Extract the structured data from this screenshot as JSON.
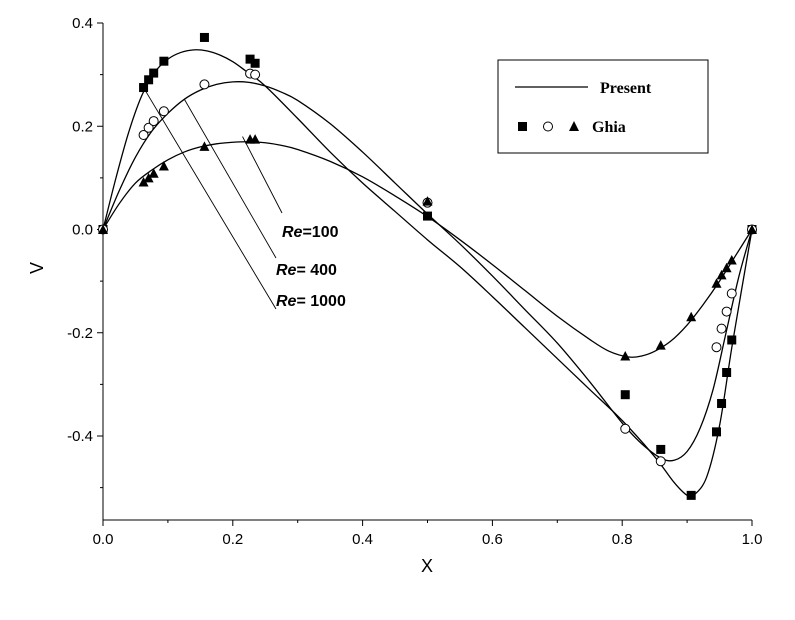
{
  "chart_data": {
    "type": "line",
    "title": "",
    "xlabel": "X",
    "ylabel": "V",
    "xlim": [
      0.0,
      1.0
    ],
    "ylim": [
      -0.55,
      0.4
    ],
    "x_ticks": [
      0.0,
      0.2,
      0.4,
      0.6,
      0.8,
      1.0
    ],
    "x_tick_labels": [
      "0.0",
      "0.2",
      "0.4",
      "0.6",
      "0.8",
      "1.0"
    ],
    "y_ticks": [
      -0.4,
      -0.2,
      0.0,
      0.2,
      0.4
    ],
    "y_tick_labels": [
      "-0.4",
      "-0.2",
      "0.0",
      "0.2",
      "0.4"
    ],
    "grid": false,
    "legend": {
      "position": "top-right",
      "present_label": "Present",
      "ghia_label": "Ghia"
    },
    "annotations": [
      {
        "prefix": "Re",
        "value": "=100"
      },
      {
        "prefix": "Re",
        "value": "= 400"
      },
      {
        "prefix": "Re",
        "value": "= 1000"
      }
    ],
    "series": [
      {
        "name": "Re=100 Present",
        "kind": "line",
        "x": [
          0.0,
          0.025,
          0.05,
          0.075,
          0.1,
          0.125,
          0.15,
          0.175,
          0.2,
          0.225,
          0.25,
          0.275,
          0.3,
          0.35,
          0.4,
          0.45,
          0.5,
          0.55,
          0.6,
          0.65,
          0.7,
          0.75,
          0.78,
          0.81,
          0.83,
          0.85,
          0.875,
          0.9,
          0.925,
          0.95,
          0.975,
          1.0
        ],
        "values": [
          0.0,
          0.05,
          0.09,
          0.115,
          0.135,
          0.15,
          0.16,
          0.166,
          0.169,
          0.17,
          0.168,
          0.163,
          0.155,
          0.132,
          0.102,
          0.065,
          0.025,
          -0.02,
          -0.068,
          -0.118,
          -0.168,
          -0.213,
          -0.236,
          -0.247,
          -0.245,
          -0.236,
          -0.216,
          -0.185,
          -0.145,
          -0.1,
          -0.05,
          0.0
        ]
      },
      {
        "name": "Re=400 Present",
        "kind": "line",
        "x": [
          0.0,
          0.025,
          0.05,
          0.075,
          0.1,
          0.125,
          0.15,
          0.175,
          0.2,
          0.225,
          0.25,
          0.275,
          0.3,
          0.35,
          0.4,
          0.45,
          0.5,
          0.55,
          0.6,
          0.65,
          0.7,
          0.75,
          0.8,
          0.83,
          0.86,
          0.88,
          0.9,
          0.92,
          0.94,
          0.96,
          0.98,
          1.0
        ],
        "values": [
          0.0,
          0.075,
          0.14,
          0.19,
          0.225,
          0.252,
          0.27,
          0.281,
          0.286,
          0.285,
          0.278,
          0.266,
          0.25,
          0.205,
          0.15,
          0.09,
          0.03,
          -0.028,
          -0.09,
          -0.155,
          -0.22,
          -0.295,
          -0.375,
          -0.415,
          -0.443,
          -0.447,
          -0.43,
          -0.385,
          -0.31,
          -0.2,
          -0.09,
          0.0
        ]
      },
      {
        "name": "Re=1000 Present",
        "kind": "line",
        "x": [
          0.0,
          0.02,
          0.04,
          0.06,
          0.08,
          0.1,
          0.12,
          0.14,
          0.16,
          0.18,
          0.2,
          0.22,
          0.25,
          0.3,
          0.35,
          0.4,
          0.45,
          0.5,
          0.55,
          0.6,
          0.65,
          0.7,
          0.75,
          0.8,
          0.85,
          0.88,
          0.9,
          0.91,
          0.93,
          0.95,
          0.97,
          1.0
        ],
        "values": [
          0.0,
          0.1,
          0.19,
          0.26,
          0.305,
          0.33,
          0.343,
          0.348,
          0.346,
          0.338,
          0.325,
          0.307,
          0.278,
          0.215,
          0.15,
          0.09,
          0.035,
          -0.02,
          -0.072,
          -0.13,
          -0.19,
          -0.25,
          -0.31,
          -0.37,
          -0.44,
          -0.49,
          -0.515,
          -0.515,
          -0.48,
          -0.38,
          -0.22,
          0.0
        ]
      },
      {
        "name": "Re=1000 Ghia",
        "kind": "scatter",
        "marker": "square",
        "x": [
          0.0,
          0.0625,
          0.0703,
          0.0781,
          0.0938,
          0.1563,
          0.2266,
          0.2344,
          0.5,
          0.8047,
          0.8594,
          0.9063,
          0.9453,
          0.9531,
          0.9609,
          0.9688,
          1.0
        ],
        "values": [
          0.0,
          0.275,
          0.29,
          0.303,
          0.326,
          0.372,
          0.33,
          0.322,
          0.026,
          -0.32,
          -0.426,
          -0.515,
          -0.392,
          -0.337,
          -0.277,
          -0.214,
          0.0
        ]
      },
      {
        "name": "Re=400 Ghia",
        "kind": "scatter",
        "marker": "circle",
        "x": [
          0.0,
          0.0625,
          0.0703,
          0.0781,
          0.0938,
          0.1563,
          0.2266,
          0.2344,
          0.5,
          0.8047,
          0.8594,
          0.9453,
          0.9531,
          0.9609,
          0.9688,
          1.0
        ],
        "values": [
          0.0,
          0.183,
          0.197,
          0.21,
          0.229,
          0.281,
          0.302,
          0.3,
          0.052,
          -0.386,
          -0.449,
          -0.228,
          -0.192,
          -0.159,
          -0.124,
          0.0
        ]
      },
      {
        "name": "Re=100 Ghia",
        "kind": "scatter",
        "marker": "triangle",
        "x": [
          0.0,
          0.0625,
          0.0703,
          0.0781,
          0.0938,
          0.1563,
          0.2266,
          0.2344,
          0.5,
          0.8047,
          0.8594,
          0.9063,
          0.9453,
          0.9531,
          0.9609,
          0.9688,
          1.0
        ],
        "values": [
          0.0,
          0.092,
          0.1,
          0.109,
          0.123,
          0.161,
          0.175,
          0.175,
          0.055,
          -0.245,
          -0.224,
          -0.169,
          -0.104,
          -0.088,
          -0.074,
          -0.059,
          0.0
        ]
      }
    ]
  }
}
